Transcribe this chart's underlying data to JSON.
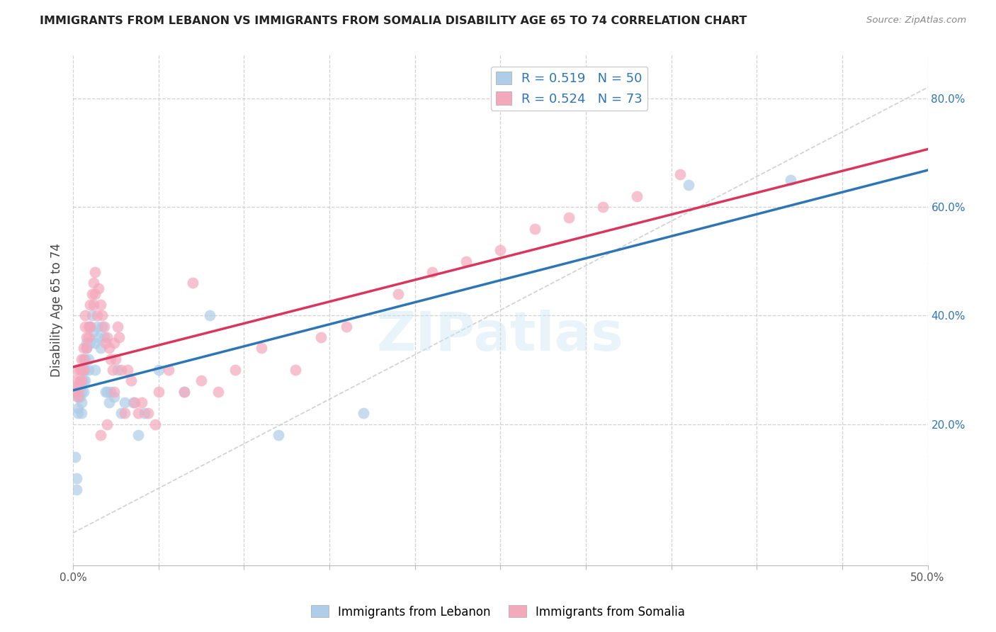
{
  "title": "IMMIGRANTS FROM LEBANON VS IMMIGRANTS FROM SOMALIA DISABILITY AGE 65 TO 74 CORRELATION CHART",
  "source": "Source: ZipAtlas.com",
  "ylabel": "Disability Age 65 to 74",
  "xlim": [
    0.0,
    0.5
  ],
  "ylim": [
    -0.06,
    0.88
  ],
  "xticks": [
    0.0,
    0.05,
    0.1,
    0.15,
    0.2,
    0.25,
    0.3,
    0.35,
    0.4,
    0.45,
    0.5
  ],
  "xtick_labels_show": [
    "0.0%",
    "",
    "",
    "",
    "",
    "",
    "",
    "",
    "",
    "",
    "50.0%"
  ],
  "yticks": [
    0.2,
    0.4,
    0.6,
    0.8
  ],
  "ytick_labels": [
    "20.0%",
    "40.0%",
    "60.0%",
    "80.0%"
  ],
  "legend_r1": "R = 0.519",
  "legend_n1": "N = 50",
  "legend_r2": "R = 0.524",
  "legend_n2": "N = 73",
  "watermark": "ZIPatlas",
  "lebanon_color": "#aecde8",
  "somalia_color": "#f4a8bc",
  "lebanon_line_color": "#2e75b6",
  "somalia_line_color": "#d9365e",
  "diagonal_color": "#c8c8c8",
  "lebanon_x": [
    0.001,
    0.002,
    0.002,
    0.003,
    0.003,
    0.003,
    0.004,
    0.004,
    0.005,
    0.005,
    0.005,
    0.006,
    0.006,
    0.006,
    0.007,
    0.007,
    0.007,
    0.008,
    0.008,
    0.009,
    0.009,
    0.01,
    0.01,
    0.011,
    0.012,
    0.013,
    0.013,
    0.014,
    0.015,
    0.016,
    0.017,
    0.018,
    0.019,
    0.02,
    0.021,
    0.022,
    0.024,
    0.026,
    0.028,
    0.03,
    0.035,
    0.038,
    0.042,
    0.05,
    0.065,
    0.08,
    0.12,
    0.17,
    0.36,
    0.42
  ],
  "lebanon_y": [
    0.14,
    0.1,
    0.08,
    0.25,
    0.23,
    0.22,
    0.27,
    0.25,
    0.26,
    0.24,
    0.22,
    0.3,
    0.28,
    0.26,
    0.32,
    0.3,
    0.28,
    0.35,
    0.34,
    0.32,
    0.3,
    0.38,
    0.35,
    0.4,
    0.37,
    0.35,
    0.3,
    0.38,
    0.36,
    0.34,
    0.38,
    0.36,
    0.26,
    0.26,
    0.24,
    0.26,
    0.25,
    0.3,
    0.22,
    0.24,
    0.24,
    0.18,
    0.22,
    0.3,
    0.26,
    0.4,
    0.18,
    0.22,
    0.64,
    0.65
  ],
  "somalia_x": [
    0.001,
    0.001,
    0.002,
    0.002,
    0.003,
    0.003,
    0.004,
    0.004,
    0.005,
    0.005,
    0.005,
    0.006,
    0.006,
    0.006,
    0.007,
    0.007,
    0.008,
    0.008,
    0.009,
    0.009,
    0.01,
    0.01,
    0.011,
    0.012,
    0.012,
    0.013,
    0.013,
    0.014,
    0.015,
    0.016,
    0.017,
    0.018,
    0.019,
    0.02,
    0.021,
    0.022,
    0.023,
    0.024,
    0.025,
    0.026,
    0.027,
    0.028,
    0.03,
    0.032,
    0.034,
    0.036,
    0.04,
    0.044,
    0.05,
    0.056,
    0.065,
    0.075,
    0.085,
    0.095,
    0.11,
    0.13,
    0.145,
    0.16,
    0.19,
    0.21,
    0.23,
    0.25,
    0.27,
    0.29,
    0.31,
    0.33,
    0.355,
    0.038,
    0.048,
    0.016,
    0.02,
    0.024,
    0.07
  ],
  "somalia_y": [
    0.28,
    0.26,
    0.3,
    0.27,
    0.26,
    0.25,
    0.3,
    0.28,
    0.32,
    0.3,
    0.28,
    0.34,
    0.32,
    0.3,
    0.4,
    0.38,
    0.36,
    0.34,
    0.38,
    0.36,
    0.42,
    0.38,
    0.44,
    0.46,
    0.42,
    0.48,
    0.44,
    0.4,
    0.45,
    0.42,
    0.4,
    0.38,
    0.35,
    0.36,
    0.34,
    0.32,
    0.3,
    0.35,
    0.32,
    0.38,
    0.36,
    0.3,
    0.22,
    0.3,
    0.28,
    0.24,
    0.24,
    0.22,
    0.26,
    0.3,
    0.26,
    0.28,
    0.26,
    0.3,
    0.34,
    0.3,
    0.36,
    0.38,
    0.44,
    0.48,
    0.5,
    0.52,
    0.56,
    0.58,
    0.6,
    0.62,
    0.66,
    0.22,
    0.2,
    0.18,
    0.2,
    0.26,
    0.46
  ]
}
